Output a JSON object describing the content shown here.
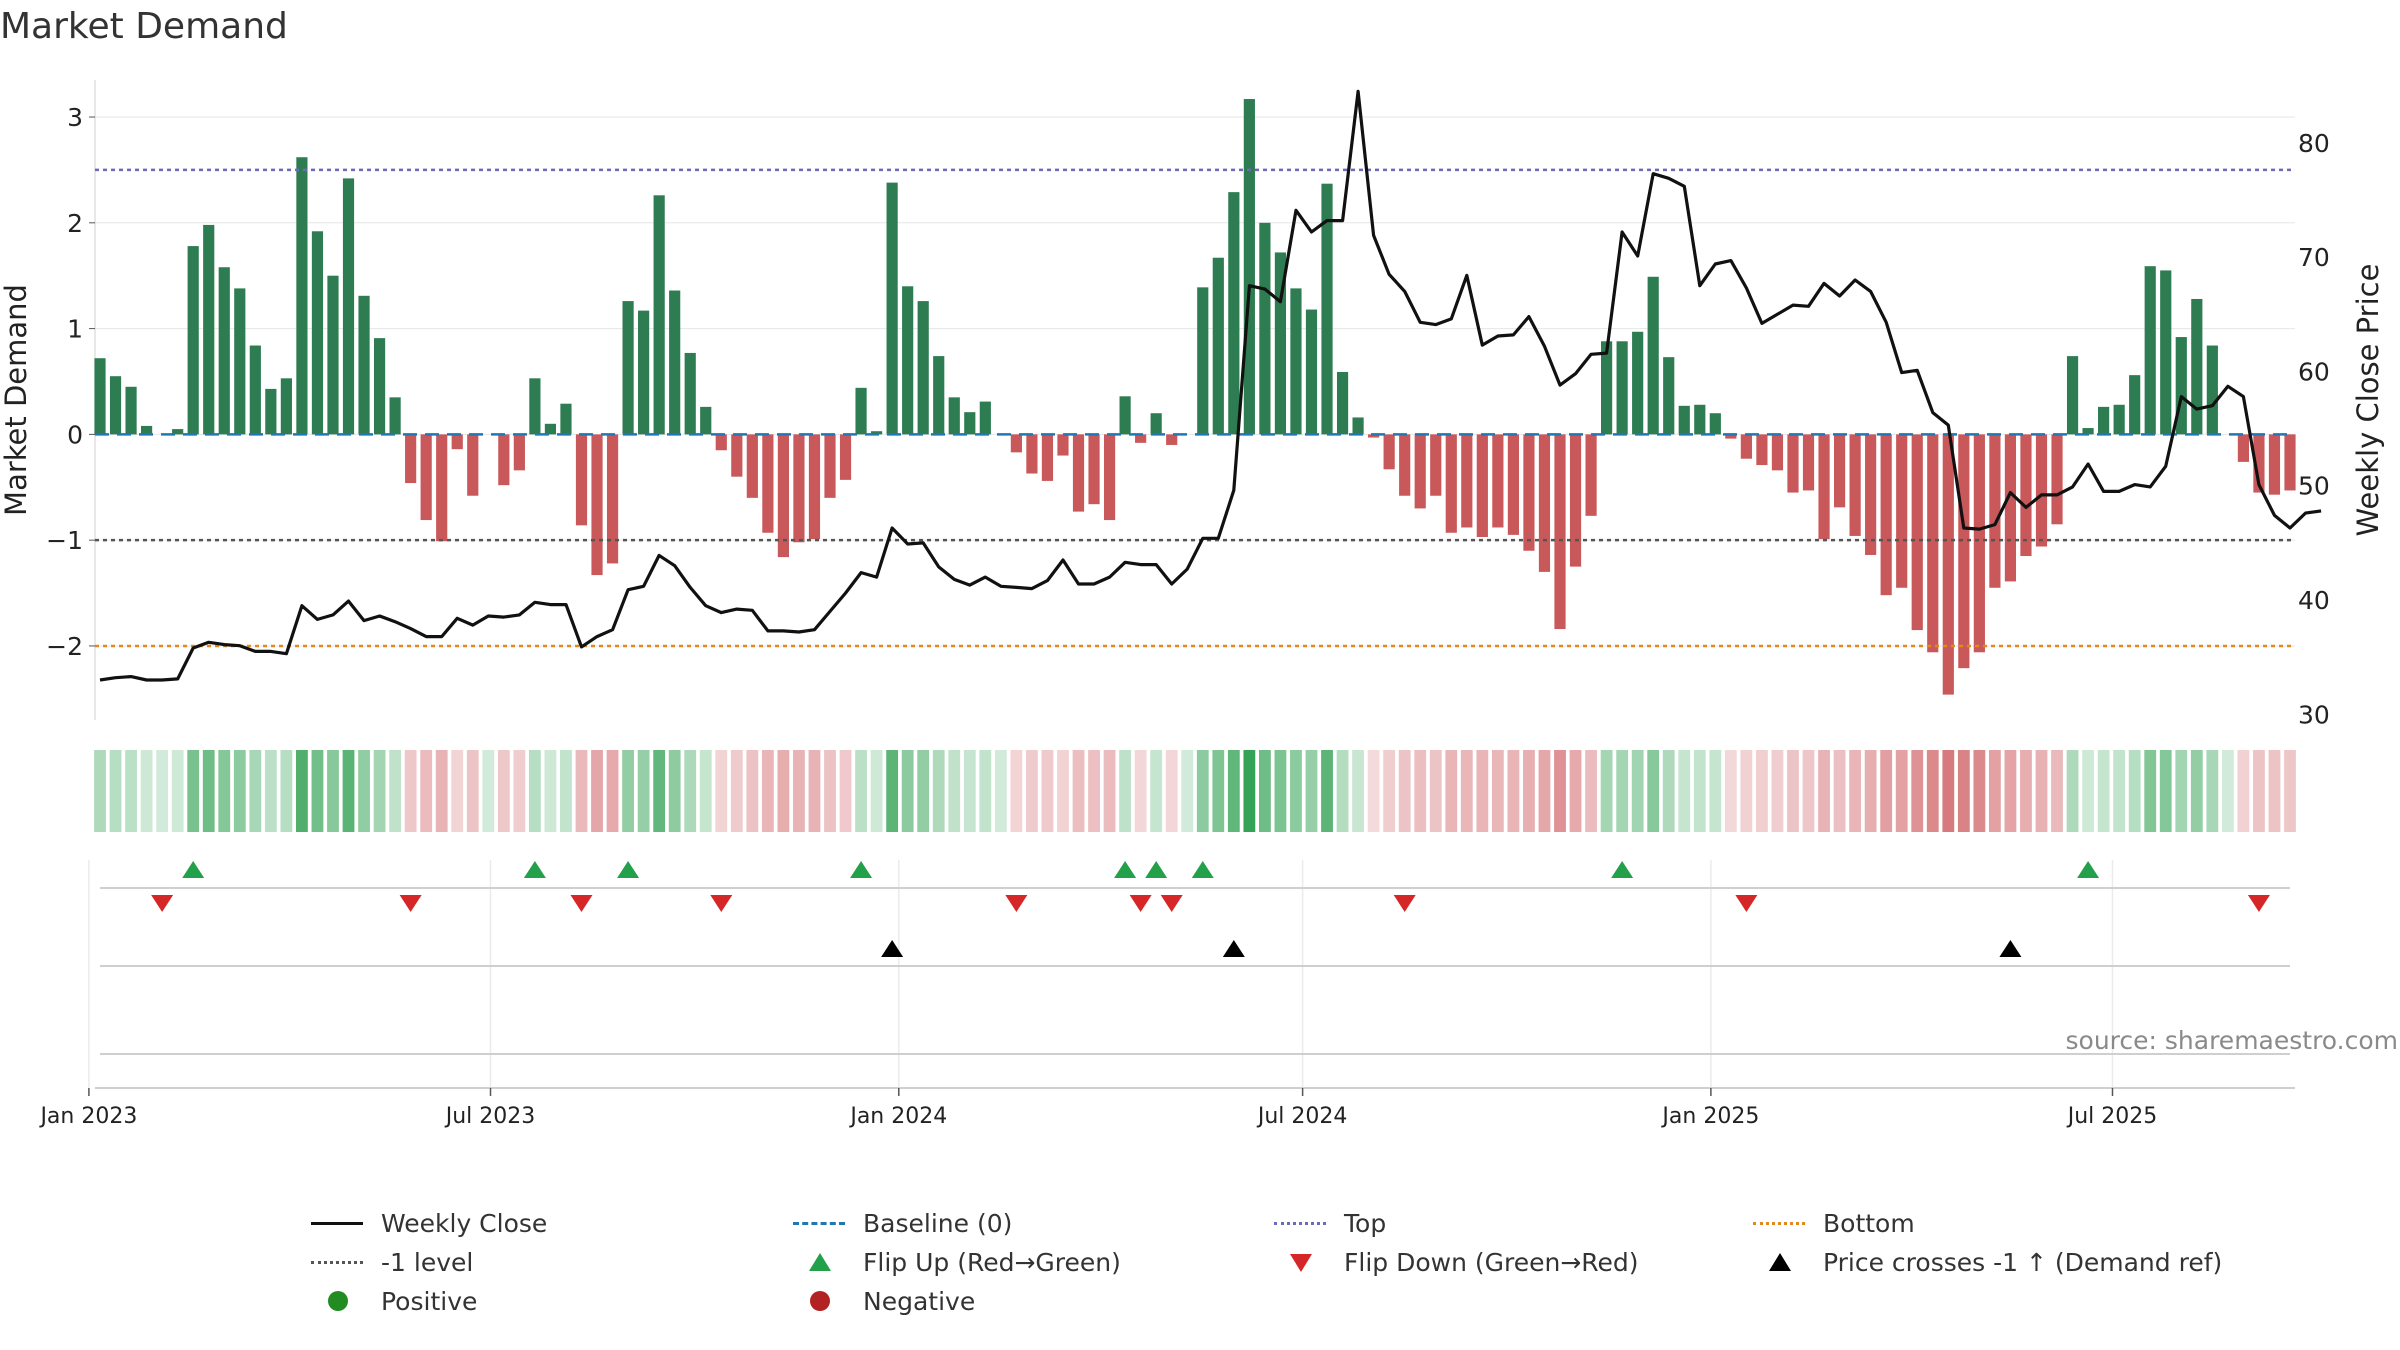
{
  "title": "Market Demand",
  "source": "source: sharemaestro.com",
  "chart_data": {
    "type": "bar+line",
    "title": "Market Demand",
    "ylabel": "Market Demand",
    "y2label": "Weekly Close Price",
    "ylim": [
      -2.7,
      3.35
    ],
    "y2lim": [
      29.5,
      85.5
    ],
    "yticks": [
      -2,
      -1,
      0,
      1,
      2,
      3
    ],
    "y2ticks": [
      30,
      40,
      50,
      60,
      70,
      80
    ],
    "x_start": "2023-01-06",
    "x_end": "2025-09-19",
    "xticks": [
      {
        "date": "2023-01-01",
        "label": "Jan 2023"
      },
      {
        "date": "2023-07-01",
        "label": "Jul 2023"
      },
      {
        "date": "2024-01-01",
        "label": "Jan 2024"
      },
      {
        "date": "2024-07-01",
        "label": "Jul 2024"
      },
      {
        "date": "2025-01-01",
        "label": "Jan 2025"
      },
      {
        "date": "2025-07-01",
        "label": "Jul 2025"
      }
    ],
    "reference_lines": {
      "top": 2.5,
      "bottom": -2.0,
      "minus_one": -1,
      "baseline": 0
    },
    "demand": [
      0.72,
      0.55,
      0.45,
      0.08,
      0.0,
      0.05,
      1.78,
      1.98,
      1.58,
      1.38,
      0.84,
      0.43,
      0.53,
      2.62,
      1.92,
      1.5,
      2.42,
      1.31,
      0.91,
      0.35,
      -0.46,
      -0.81,
      -1.01,
      -0.14,
      -0.58,
      0.0,
      -0.48,
      -0.34,
      0.53,
      0.1,
      0.29,
      -0.86,
      -1.33,
      -1.22,
      1.26,
      1.17,
      2.26,
      1.36,
      0.77,
      0.26,
      -0.15,
      -0.4,
      -0.6,
      -0.93,
      -1.16,
      -1.02,
      -0.99,
      -0.6,
      -0.43,
      0.44,
      0.03,
      2.38,
      1.4,
      1.26,
      0.74,
      0.35,
      0.21,
      0.31,
      0.0,
      -0.17,
      -0.37,
      -0.44,
      -0.2,
      -0.73,
      -0.66,
      -0.81,
      0.36,
      -0.08,
      0.2,
      -0.1,
      0.0,
      1.39,
      1.67,
      2.29,
      3.17,
      2.0,
      1.72,
      1.38,
      1.18,
      2.37,
      0.59,
      0.16,
      -0.03,
      -0.33,
      -0.58,
      -0.7,
      -0.58,
      -0.93,
      -0.88,
      -0.97,
      -0.88,
      -0.95,
      -1.1,
      -1.3,
      -1.84,
      -1.25,
      -0.77,
      0.88,
      0.88,
      0.97,
      1.49,
      0.73,
      0.27,
      0.28,
      0.2,
      -0.04,
      -0.23,
      -0.29,
      -0.34,
      -0.55,
      -0.53,
      -0.99,
      -0.69,
      -0.96,
      -1.14,
      -1.52,
      -1.45,
      -1.85,
      -2.06,
      -2.46,
      -2.21,
      -2.06,
      -1.45,
      -1.39,
      -1.15,
      -1.06,
      -0.85,
      0.74,
      0.06,
      0.26,
      0.28,
      0.56,
      1.59,
      1.55,
      0.92,
      1.28,
      0.84,
      0.0,
      -0.26,
      -0.55,
      -0.57,
      -0.53
    ],
    "close": [
      33.0,
      33.2,
      33.3,
      33.0,
      33.0,
      33.1,
      35.8,
      36.3,
      36.1,
      36.0,
      35.5,
      35.5,
      35.3,
      39.5,
      38.3,
      38.7,
      39.9,
      38.2,
      38.6,
      38.1,
      37.5,
      36.8,
      36.8,
      38.4,
      37.8,
      38.6,
      38.5,
      38.7,
      39.8,
      39.6,
      39.6,
      35.9,
      36.8,
      37.4,
      40.9,
      41.2,
      43.9,
      43.0,
      41.1,
      39.5,
      38.9,
      39.2,
      39.1,
      37.3,
      37.3,
      37.2,
      37.4,
      39.0,
      40.6,
      42.4,
      42.0,
      46.3,
      44.9,
      45.0,
      42.9,
      41.8,
      41.3,
      42.0,
      41.2,
      41.1,
      41.0,
      41.7,
      43.5,
      41.4,
      41.4,
      42.0,
      43.3,
      43.1,
      43.1,
      41.4,
      42.7,
      45.4,
      45.4,
      49.6,
      67.5,
      67.2,
      66.1,
      74.1,
      72.2,
      73.2,
      73.2,
      84.5,
      71.9,
      68.5,
      67.0,
      64.3,
      64.1,
      64.6,
      68.4,
      62.3,
      63.1,
      63.2,
      64.8,
      62.2,
      58.8,
      59.8,
      61.5,
      61.6,
      72.2,
      70.1,
      77.3,
      76.9,
      76.2,
      67.5,
      69.4,
      69.7,
      67.3,
      64.2,
      65.0,
      65.8,
      65.7,
      67.7,
      66.6,
      68.0,
      67.0,
      64.3,
      59.9,
      60.1,
      56.4,
      55.3,
      46.3,
      46.2,
      46.6,
      49.4,
      48.1,
      49.2,
      49.2,
      49.9,
      51.9,
      49.5,
      49.5,
      50.1,
      49.9,
      51.7,
      57.8,
      56.7,
      57.0,
      58.7,
      57.8,
      50.1,
      47.4,
      46.3,
      47.6,
      47.8
    ],
    "flip_up_weeks": [
      6,
      28,
      34,
      49,
      66,
      68,
      71,
      98,
      128
    ],
    "flip_down_weeks": [
      4,
      20,
      31,
      40,
      59,
      67,
      69,
      84,
      106,
      139
    ],
    "price_cross_weeks": [
      51,
      73,
      123
    ],
    "legend": [
      "Weekly Close",
      "Baseline (0)",
      "Top",
      "Bottom",
      "-1 level",
      "Flip Up (Red→Green)",
      "Flip Down (Green→Red)",
      "Price crosses -1 ↑ (Demand ref)",
      "Positive",
      "Negative"
    ],
    "colors": {
      "positive": "#2e7d52",
      "negative": "#c9585b",
      "line": "#111111",
      "baseline": "#1f77b4",
      "top": "#6a6ab8",
      "bottom": "#e08a1e",
      "minus_one": "#555555",
      "flip_up": "#22a04a",
      "flip_down": "#d62728",
      "cross": "#000000",
      "legend_positive": "#228b22",
      "legend_negative": "#b22222"
    }
  }
}
